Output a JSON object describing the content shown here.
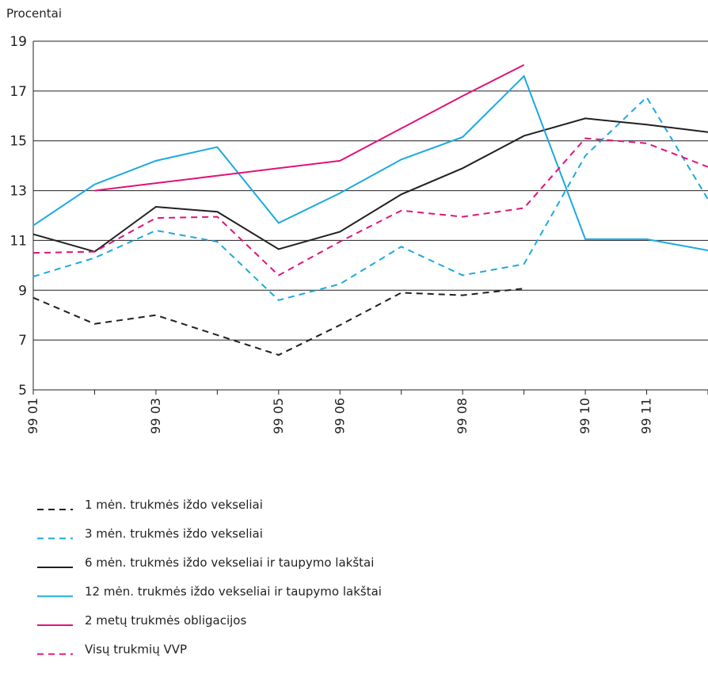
{
  "chart_data": {
    "type": "line",
    "y_label": "Procentai",
    "categories": [
      "99 01",
      null,
      "99 03",
      null,
      "99 05",
      "99 06",
      null,
      "99 08",
      null,
      "99 10",
      "99 11",
      null
    ],
    "ylim": [
      5,
      19
    ],
    "yticks": [
      5,
      7,
      9,
      11,
      13,
      15,
      17,
      19
    ],
    "grid": true,
    "series": [
      {
        "name": "1 mėn. trukmės iždo vekseliai",
        "color": "#231f20",
        "dash": true,
        "values": [
          8.7,
          7.65,
          8.0,
          7.2,
          6.4,
          7.6,
          8.9,
          8.8,
          9.07,
          null,
          null,
          null
        ]
      },
      {
        "name": "3 mėn. trukmės iždo vekseliai",
        "color": "#1ba9e1",
        "dash": true,
        "values": [
          9.55,
          10.3,
          11.4,
          10.95,
          8.6,
          9.25,
          10.75,
          9.6,
          10.05,
          14.4,
          16.75,
          12.65
        ]
      },
      {
        "name": "6 mėn. trukmės iždo vekseliai ir taupymo lakštai",
        "color": "#231f20",
        "dash": false,
        "values": [
          11.25,
          10.55,
          12.35,
          12.15,
          10.65,
          11.35,
          12.85,
          13.9,
          15.2,
          15.9,
          15.65,
          15.35
        ]
      },
      {
        "name": "12 mėn. trukmės iždo vekseliai ir taupymo lakštai",
        "color": "#1ba9e1",
        "dash": false,
        "values": [
          11.6,
          13.25,
          14.2,
          14.75,
          11.7,
          12.9,
          14.25,
          15.15,
          17.6,
          11.05,
          11.05,
          10.6
        ]
      },
      {
        "name": "2 metų trukmės obligacijos",
        "color": "#e2127a",
        "dash": false,
        "values": [
          null,
          13.0,
          13.3,
          13.6,
          13.9,
          14.2,
          15.5,
          16.8,
          18.05,
          null,
          null,
          null
        ]
      },
      {
        "name": "Visų trukmių VVP",
        "color": "#e2127a",
        "dash": true,
        "values": [
          10.5,
          10.55,
          11.9,
          11.95,
          9.6,
          10.95,
          12.2,
          11.95,
          12.3,
          15.1,
          14.9,
          13.95
        ]
      }
    ]
  }
}
